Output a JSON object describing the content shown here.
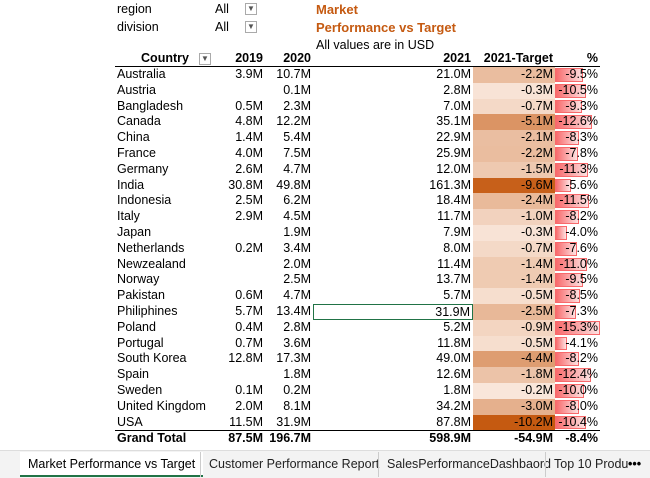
{
  "filters": [
    {
      "label": "region",
      "value": "All"
    },
    {
      "label": "division",
      "value": "All"
    }
  ],
  "header": {
    "title": "Market",
    "subtitle": "Performance vs Target",
    "note": "All values are in USD"
  },
  "table": {
    "columns": [
      "Country",
      "2019",
      "2020",
      "2021",
      "2021-Target",
      "%"
    ],
    "rows": [
      [
        "Australia",
        "3.9M",
        "10.7M",
        "21.0M",
        "-2.2M",
        "-9.5%"
      ],
      [
        "Austria",
        null,
        "0.1M",
        "2.8M",
        "-0.3M",
        "-10.5%"
      ],
      [
        "Bangladesh",
        "0.5M",
        "2.3M",
        "7.0M",
        "-0.7M",
        "-9.3%"
      ],
      [
        "Canada",
        "4.8M",
        "12.2M",
        "35.1M",
        "-5.1M",
        "-12.6%"
      ],
      [
        "China",
        "1.4M",
        "5.4M",
        "22.9M",
        "-2.1M",
        "-8.3%"
      ],
      [
        "France",
        "4.0M",
        "7.5M",
        "25.9M",
        "-2.2M",
        "-7.8%"
      ],
      [
        "Germany",
        "2.6M",
        "4.7M",
        "12.0M",
        "-1.5M",
        "-11.3%"
      ],
      [
        "India",
        "30.8M",
        "49.8M",
        "161.3M",
        "-9.6M",
        "-5.6%"
      ],
      [
        "Indonesia",
        "2.5M",
        "6.2M",
        "18.4M",
        "-2.4M",
        "-11.5%"
      ],
      [
        "Italy",
        "2.9M",
        "4.5M",
        "11.7M",
        "-1.0M",
        "-8.2%"
      ],
      [
        "Japan",
        null,
        "1.9M",
        "7.9M",
        "-0.3M",
        "-4.0%"
      ],
      [
        "Netherlands",
        "0.2M",
        "3.4M",
        "8.0M",
        "-0.7M",
        "-7.6%"
      ],
      [
        "Newzealand",
        null,
        "2.0M",
        "11.4M",
        "-1.4M",
        "-11.0%"
      ],
      [
        "Norway",
        null,
        "2.5M",
        "13.7M",
        "-1.4M",
        "-9.5%"
      ],
      [
        "Pakistan",
        "0.6M",
        "4.7M",
        "5.7M",
        "-0.5M",
        "-8.5%"
      ],
      [
        "Philiphines",
        "5.7M",
        "13.4M",
        "31.9M",
        "-2.5M",
        "-7.3%"
      ],
      [
        "Poland",
        "0.4M",
        "2.8M",
        "5.2M",
        "-0.9M",
        "-15.3%"
      ],
      [
        "Portugal",
        "0.7M",
        "3.6M",
        "11.8M",
        "-0.5M",
        "-4.1%"
      ],
      [
        "South Korea",
        "12.8M",
        "17.3M",
        "49.0M",
        "-4.4M",
        "-8.2%"
      ],
      [
        "Spain",
        null,
        "1.8M",
        "12.6M",
        "-1.8M",
        "-12.4%"
      ],
      [
        "Sweden",
        "0.1M",
        "0.2M",
        "1.8M",
        "-0.2M",
        "-10.0%"
      ],
      [
        "United Kingdom",
        "2.0M",
        "8.1M",
        "34.2M",
        "-3.0M",
        "-8.0%"
      ],
      [
        "USA",
        "11.5M",
        "31.9M",
        "87.8M",
        "-10.2M",
        "-10.4%"
      ]
    ],
    "total": [
      "Grand Total",
      "87.5M",
      "196.7M",
      "598.9M",
      "-54.9M",
      "-8.4%"
    ]
  },
  "tabs": [
    "Market Performance vs Target",
    "Customer Performance Report",
    "SalesPerformanceDashbaord",
    "Top 10 Produ"
  ]
}
